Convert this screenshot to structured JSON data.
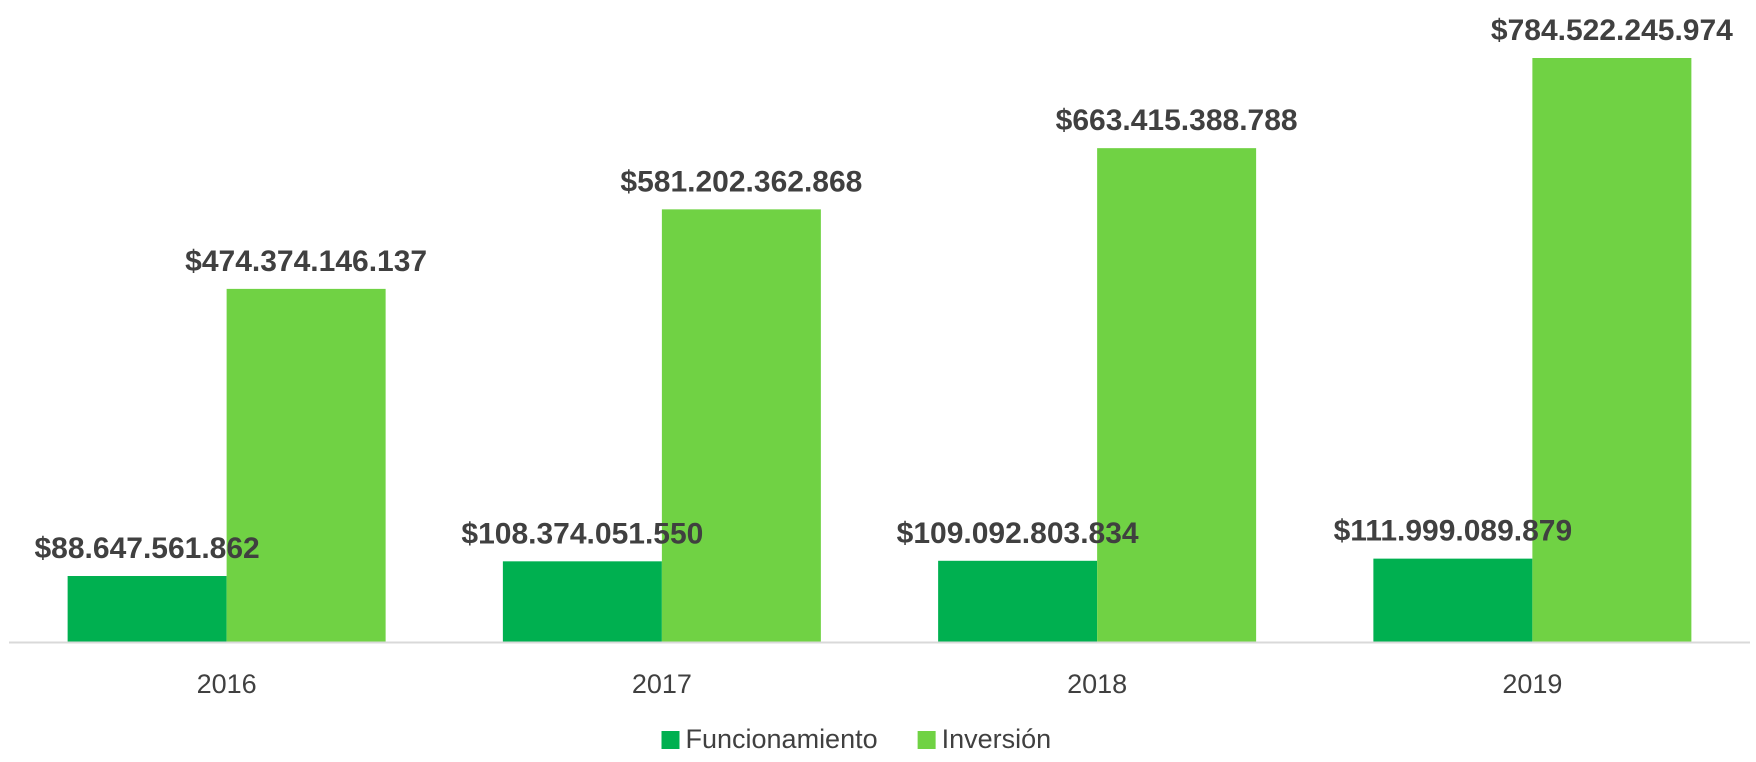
{
  "chart_data": {
    "type": "bar",
    "categories": [
      "2016",
      "2017",
      "2018",
      "2019"
    ],
    "series": [
      {
        "name": "Funcionamiento",
        "color": "#00b050",
        "values": [
          88647561862,
          108374051550,
          109092803834,
          111999089879
        ],
        "value_labels": [
          "$88.647.561.862",
          "$108.374.051.550",
          "$109.092.803.834",
          "$111.999.089.879"
        ]
      },
      {
        "name": "Inversión",
        "color": "#70d244",
        "values": [
          474374146137,
          581202362868,
          663415388788,
          784522245974
        ],
        "value_labels": [
          "$474.374.146.137",
          "$581.202.362.868",
          "$663.415.388.788",
          "$784.522.245.974"
        ]
      }
    ],
    "legend": "bottom"
  }
}
